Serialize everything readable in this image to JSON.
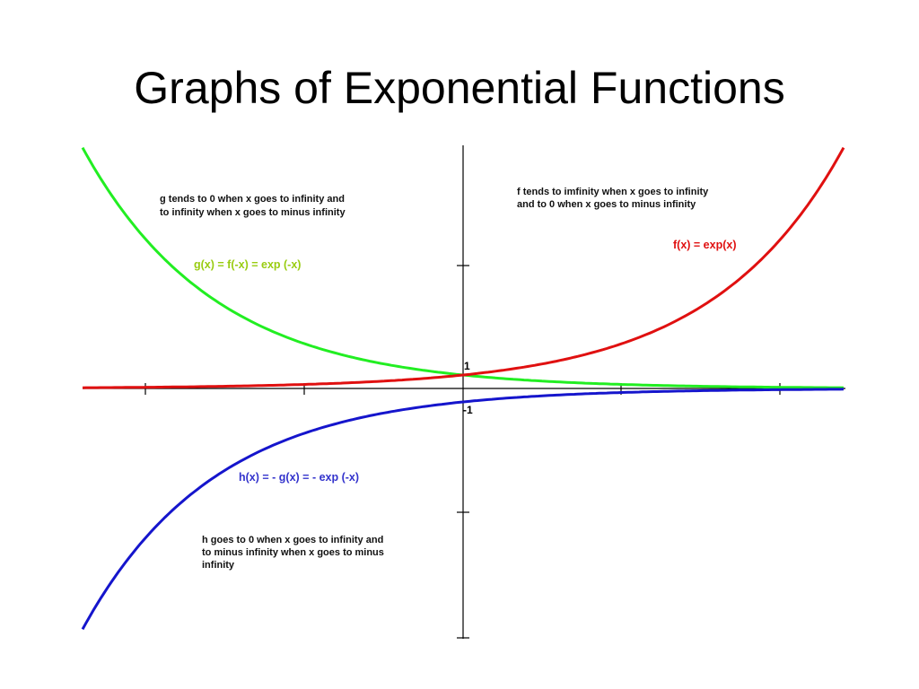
{
  "title": "Graphs of Exponential Functions",
  "annotations": {
    "g_note": [
      "g tends to 0 when x goes to infinity and",
      "to infinity when x goes to minus infinity"
    ],
    "f_note": [
      "f tends to imfinity when x goes to infinity",
      "and to 0 when x goes to minus infinity"
    ],
    "h_note": [
      "h goes to 0 when x goes to infinity and",
      "to minus infinity when x goes to minus",
      "infinity"
    ],
    "f_label": "f(x) = exp(x)",
    "g_label": "g(x) = f(-x) = exp (-x)",
    "h_label": "h(x) = - g(x) = - exp (-x)"
  },
  "axis_labels": {
    "one": "1",
    "minus_one": "-1"
  }
}
